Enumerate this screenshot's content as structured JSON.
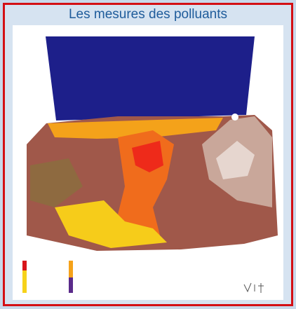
{
  "header": {
    "title": "Les mesures des polluants"
  }
}
